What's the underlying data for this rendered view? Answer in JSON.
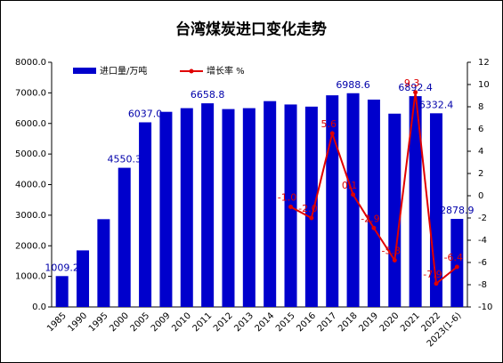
{
  "chart_data": {
    "type": "bar-line",
    "title": "台湾煤炭进口变化走势",
    "categories": [
      "1985",
      "1990",
      "1995",
      "2000",
      "2005",
      "2009",
      "2010",
      "2011",
      "2012",
      "2013",
      "2014",
      "2015",
      "2016",
      "2017",
      "2018",
      "2019",
      "2020",
      "2021",
      "2022",
      "2023(1-6)"
    ],
    "series": [
      {
        "name": "进口量/万吨",
        "color": "#0000cc",
        "type": "bar",
        "values": [
          1009.2,
          1850,
          2870,
          4550.3,
          6037.0,
          6380,
          6500,
          6658.8,
          6470,
          6500,
          6730,
          6620,
          6550,
          6920,
          6988.6,
          6780,
          6320,
          6892.4,
          6332.4,
          2878.9
        ],
        "value_labels": [
          "1009.2",
          null,
          null,
          "4550.3",
          "6037.0",
          null,
          null,
          "6658.8",
          null,
          null,
          null,
          null,
          null,
          null,
          "6988.6",
          null,
          null,
          "6892.4",
          "6332.4",
          "2878.9"
        ]
      },
      {
        "name": "增长率 %",
        "color": "#e00000",
        "type": "line",
        "axis": "y2",
        "values": [
          null,
          null,
          null,
          null,
          null,
          null,
          null,
          null,
          null,
          null,
          null,
          -1.0,
          -2.0,
          5.6,
          0.1,
          -2.9,
          -5.8,
          9.3,
          -7.9,
          -6.4
        ],
        "value_labels": [
          null,
          null,
          null,
          null,
          null,
          null,
          null,
          null,
          null,
          null,
          null,
          "-1.0",
          "-2.0",
          "5.6",
          "0.1",
          "-2.9",
          "-5.8",
          "9.3",
          "-7.9",
          "-6.4"
        ]
      }
    ],
    "ylim": [
      0,
      8000
    ],
    "yticks": [
      {
        "value": 0,
        "label": "0.0"
      },
      {
        "value": 1000,
        "label": "1000.0"
      },
      {
        "value": 2000,
        "label": "2000.0"
      },
      {
        "value": 3000,
        "label": "3000.0"
      },
      {
        "value": 4000,
        "label": "4000.0"
      },
      {
        "value": 5000,
        "label": "5000.0"
      },
      {
        "value": 6000,
        "label": "6000.0"
      },
      {
        "value": 7000,
        "label": "7000.0"
      },
      {
        "value": 8000,
        "label": "8000.0"
      }
    ],
    "y2lim": [
      -10,
      12
    ],
    "y2ticks": [
      -10,
      -8,
      -6,
      -4,
      -2,
      0,
      2,
      4,
      6,
      8,
      10,
      12
    ],
    "legend": "top-left"
  }
}
